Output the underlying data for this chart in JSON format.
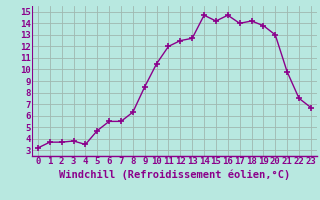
{
  "x": [
    0,
    1,
    2,
    3,
    4,
    5,
    6,
    7,
    8,
    9,
    10,
    11,
    12,
    13,
    14,
    15,
    16,
    17,
    18,
    19,
    20,
    21,
    22,
    23
  ],
  "y": [
    3.2,
    3.7,
    3.7,
    3.8,
    3.5,
    4.7,
    5.5,
    5.5,
    6.3,
    8.5,
    10.5,
    12.0,
    12.5,
    12.7,
    14.7,
    14.2,
    14.7,
    14.0,
    14.2,
    13.8,
    13.0,
    9.8,
    7.5,
    6.7
  ],
  "xlim": [
    -0.5,
    23.5
  ],
  "ylim": [
    2.5,
    15.5
  ],
  "yticks": [
    3,
    4,
    5,
    6,
    7,
    8,
    9,
    10,
    11,
    12,
    13,
    14,
    15
  ],
  "xticks": [
    0,
    1,
    2,
    3,
    4,
    5,
    6,
    7,
    8,
    9,
    10,
    11,
    12,
    13,
    14,
    15,
    16,
    17,
    18,
    19,
    20,
    21,
    22,
    23
  ],
  "xlabel": "Windchill (Refroidissement éolien,°C)",
  "line_color": "#8B008B",
  "marker": "+",
  "bg_color": "#b8e8e0",
  "grid_color": "#a0b8b0",
  "tick_color": "#8B008B",
  "tick_label_fontsize": 6.5,
  "xlabel_fontsize": 7.5,
  "title": ""
}
